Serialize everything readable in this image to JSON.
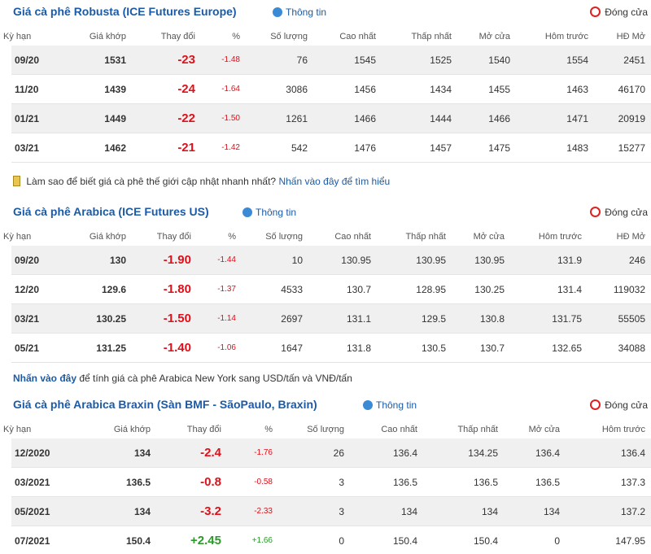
{
  "sections": [
    {
      "title": "Giá cà phê Robusta (ICE Futures Europe)",
      "info": "Thông tin",
      "close": "Đóng cửa",
      "columns": [
        "Kỳ hạn",
        "Giá khớp",
        "Thay đổi",
        "%",
        "Số lượng",
        "Cao nhất",
        "Thấp nhất",
        "Mở cửa",
        "Hôm trước",
        "HĐ Mở"
      ],
      "rows": [
        [
          "09/20",
          "1531",
          "-23",
          "-1.48",
          "76",
          "1545",
          "1525",
          "1540",
          "1554",
          "2451"
        ],
        [
          "11/20",
          "1439",
          "-24",
          "-1.64",
          "3086",
          "1456",
          "1434",
          "1455",
          "1463",
          "46170"
        ],
        [
          "01/21",
          "1449",
          "-22",
          "-1.50",
          "1261",
          "1466",
          "1444",
          "1466",
          "1471",
          "20919"
        ],
        [
          "03/21",
          "1462",
          "-21",
          "-1.42",
          "542",
          "1476",
          "1457",
          "1475",
          "1483",
          "15277"
        ]
      ]
    },
    {
      "title": "Giá cà phê Arabica (ICE Futures US)",
      "info": "Thông tin",
      "close": "Đóng cửa",
      "columns": [
        "Kỳ hạn",
        "Giá khớp",
        "Thay đổi",
        "%",
        "Số lượng",
        "Cao nhất",
        "Thấp nhất",
        "Mở cửa",
        "Hôm trước",
        "HĐ Mở"
      ],
      "rows": [
        [
          "09/20",
          "130",
          "-1.90",
          "-1.44",
          "10",
          "130.95",
          "130.95",
          "130.95",
          "131.9",
          "246"
        ],
        [
          "12/20",
          "129.6",
          "-1.80",
          "-1.37",
          "4533",
          "130.7",
          "128.95",
          "130.25",
          "131.4",
          "119032"
        ],
        [
          "03/21",
          "130.25",
          "-1.50",
          "-1.14",
          "2697",
          "131.1",
          "129.5",
          "130.8",
          "131.75",
          "55505"
        ],
        [
          "05/21",
          "131.25",
          "-1.40",
          "-1.06",
          "1647",
          "131.8",
          "130.5",
          "130.7",
          "132.65",
          "34088"
        ]
      ]
    },
    {
      "title": "Giá cà phê Arabica Braxin (Sàn BMF - SãoPaulo, Braxin)",
      "info": "Thông tin",
      "close": "Đóng cửa",
      "columns": [
        "Kỳ hạn",
        "Giá khớp",
        "Thay đổi",
        "%",
        "Số lượng",
        "Cao nhất",
        "Thấp nhất",
        "Mở cửa",
        "Hôm trước"
      ],
      "rows": [
        [
          "12/2020",
          "134",
          "-2.4",
          "-1.76",
          "26",
          "136.4",
          "134.25",
          "136.4",
          "136.4"
        ],
        [
          "03/2021",
          "136.5",
          "-0.8",
          "-0.58",
          "3",
          "136.5",
          "136.5",
          "136.5",
          "137.3"
        ],
        [
          "05/2021",
          "134",
          "-3.2",
          "-2.33",
          "3",
          "134",
          "134",
          "134",
          "137.2"
        ],
        [
          "07/2021",
          "150.4",
          "+2.45",
          "+1.66",
          "0",
          "150.4",
          "150.4",
          "0",
          "147.95"
        ]
      ]
    }
  ],
  "tip": {
    "text": "Làm sao để biết giá cà phê thế giới cập nhật nhanh nhất?",
    "link": "Nhấn vào đây để tìm hiểu"
  },
  "note": {
    "link": "Nhấn vào đây",
    "text": "để tính giá cà phê Arabica New York sang USD/tấn và VNĐ/tấn"
  }
}
